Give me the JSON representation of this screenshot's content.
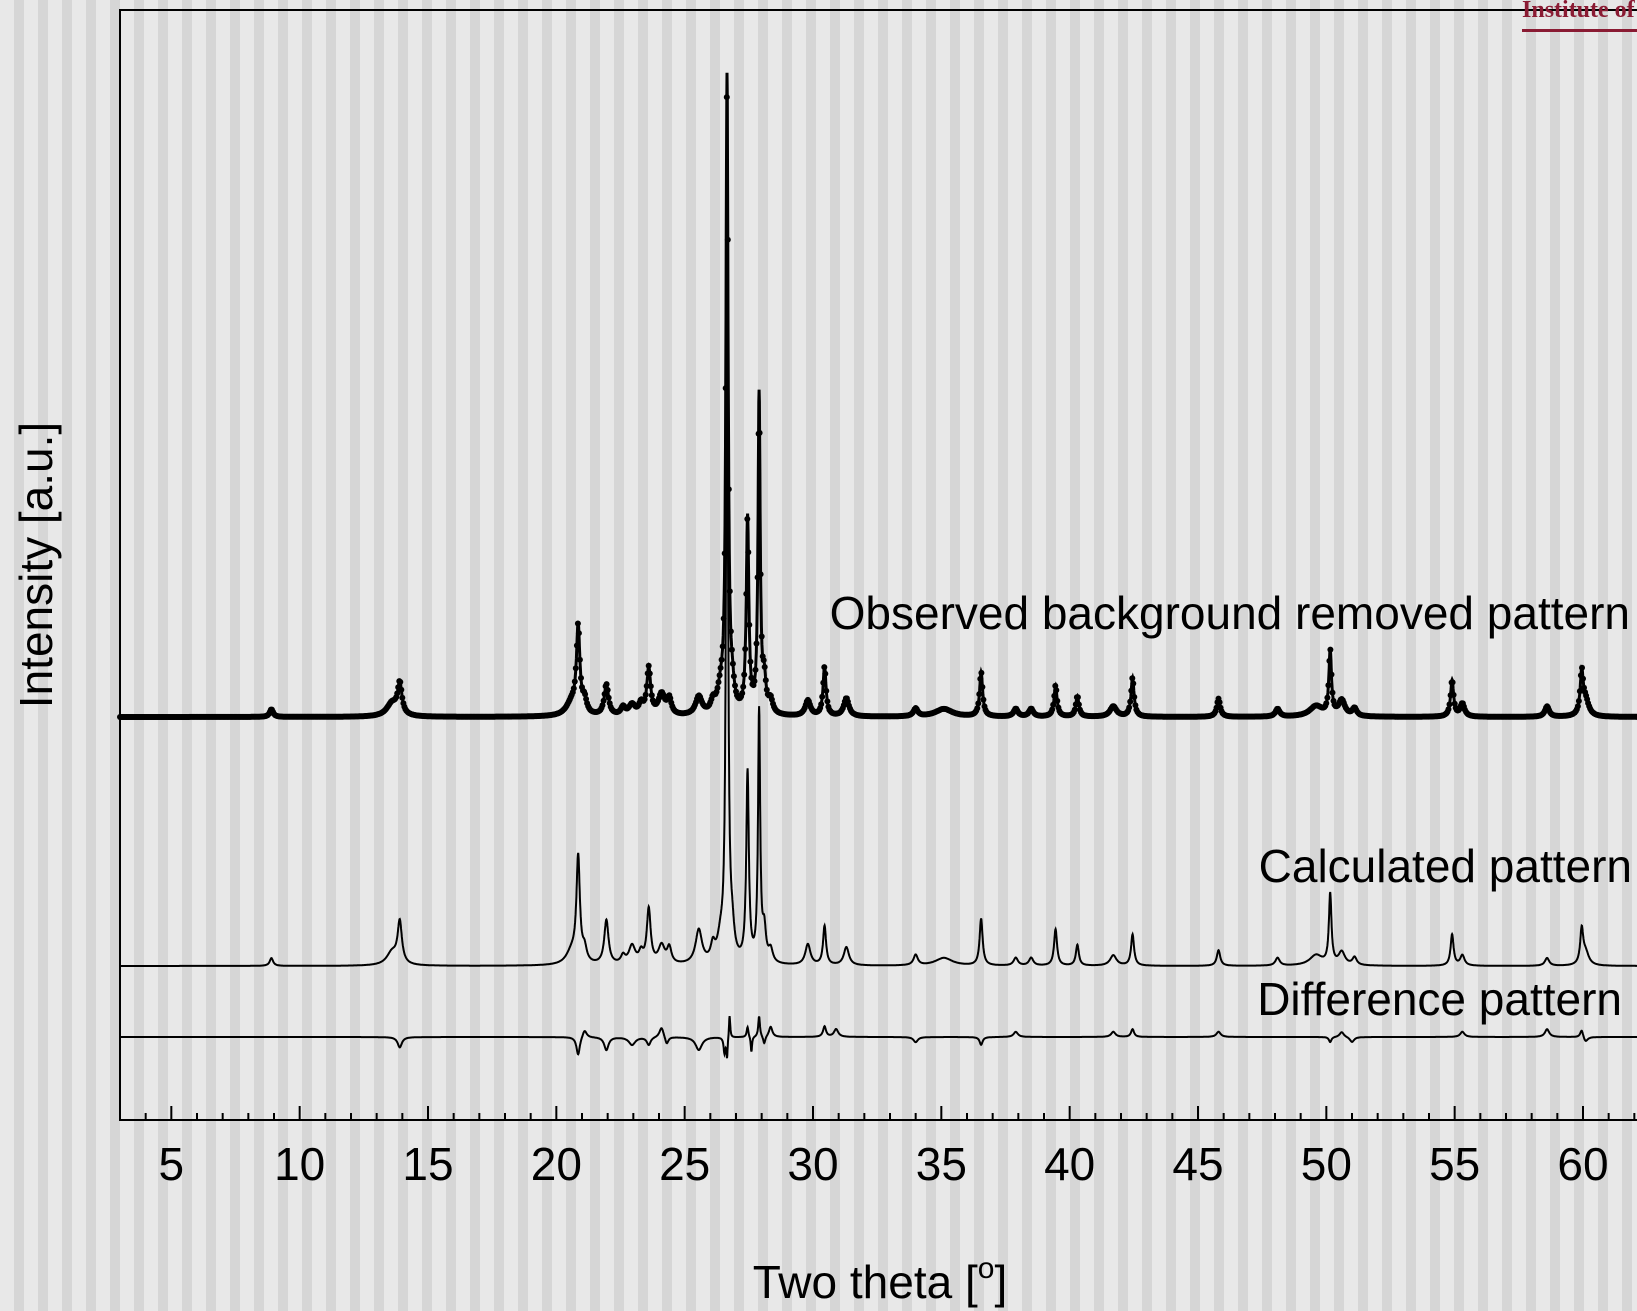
{
  "logo_text": "Institute of",
  "chart_data": {
    "type": "line",
    "title": "",
    "xlabel": "Two theta [",
    "xlabel_sup": "o",
    "xlabel_suffix": "]",
    "ylabel": "Intensity [a.u.]",
    "xlim": [
      3,
      63
    ],
    "x_ticks": [
      5,
      10,
      15,
      20,
      25,
      30,
      35,
      40,
      45,
      50,
      55,
      60
    ],
    "y_ticks": [],
    "grid": false,
    "x_range": [
      3,
      63
    ],
    "series": [
      {
        "name": "Observed background removed pattern",
        "marker": "dot",
        "baseline": 0,
        "peaks": [
          [
            8.9,
            3,
            0.08
          ],
          [
            13.6,
            5,
            0.25
          ],
          [
            13.9,
            12,
            0.1
          ],
          [
            20.6,
            5,
            0.25
          ],
          [
            20.85,
            33,
            0.08
          ],
          [
            21.1,
            5,
            0.1
          ],
          [
            21.95,
            12,
            0.1
          ],
          [
            22.6,
            3,
            0.1
          ],
          [
            22.95,
            4,
            0.15
          ],
          [
            23.3,
            4,
            0.1
          ],
          [
            23.6,
            18,
            0.09
          ],
          [
            24.1,
            8,
            0.15
          ],
          [
            24.4,
            6,
            0.1
          ],
          [
            25.55,
            7,
            0.15
          ],
          [
            26.1,
            4,
            0.1
          ],
          [
            26.4,
            8,
            0.15
          ],
          [
            26.65,
            243,
            0.05
          ],
          [
            26.85,
            8,
            0.1
          ],
          [
            27.45,
            75,
            0.06
          ],
          [
            27.9,
            122,
            0.05
          ],
          [
            28.1,
            12,
            0.08
          ],
          [
            28.35,
            5,
            0.1
          ],
          [
            29.8,
            6,
            0.12
          ],
          [
            30.45,
            19,
            0.07
          ],
          [
            31.3,
            7,
            0.12
          ],
          [
            34.0,
            3,
            0.1
          ],
          [
            35.1,
            3,
            0.4
          ],
          [
            36.55,
            17,
            0.07
          ],
          [
            37.9,
            3,
            0.1
          ],
          [
            38.5,
            3,
            0.1
          ],
          [
            39.45,
            12,
            0.07
          ],
          [
            40.3,
            8,
            0.07
          ],
          [
            41.7,
            4,
            0.15
          ],
          [
            42.45,
            15,
            0.07
          ],
          [
            45.8,
            7,
            0.08
          ],
          [
            48.1,
            3,
            0.1
          ],
          [
            49.6,
            4,
            0.3
          ],
          [
            50.15,
            25,
            0.06
          ],
          [
            50.6,
            6,
            0.15
          ],
          [
            51.1,
            3,
            0.1
          ],
          [
            54.9,
            14,
            0.07
          ],
          [
            55.3,
            5,
            0.1
          ],
          [
            58.6,
            4,
            0.1
          ],
          [
            59.95,
            16,
            0.07
          ],
          [
            60.1,
            6,
            0.15
          ]
        ]
      },
      {
        "name": "Calculated pattern",
        "marker": "none",
        "baseline": 0,
        "peaks": [
          [
            8.9,
            3,
            0.08
          ],
          [
            13.6,
            5,
            0.25
          ],
          [
            13.9,
            16,
            0.1
          ],
          [
            20.6,
            5,
            0.25
          ],
          [
            20.85,
            40,
            0.08
          ],
          [
            21.1,
            5,
            0.1
          ],
          [
            21.95,
            17,
            0.1
          ],
          [
            22.6,
            3,
            0.1
          ],
          [
            22.95,
            7,
            0.15
          ],
          [
            23.3,
            4,
            0.1
          ],
          [
            23.6,
            21,
            0.09
          ],
          [
            24.1,
            7,
            0.15
          ],
          [
            24.4,
            6,
            0.1
          ],
          [
            25.55,
            13,
            0.15
          ],
          [
            26.1,
            6,
            0.1
          ],
          [
            26.4,
            8,
            0.15
          ],
          [
            26.65,
            250,
            0.05
          ],
          [
            26.85,
            10,
            0.1
          ],
          [
            27.45,
            73,
            0.06
          ],
          [
            27.9,
            96,
            0.05
          ],
          [
            28.1,
            12,
            0.08
          ],
          [
            28.35,
            5,
            0.1
          ],
          [
            29.8,
            8,
            0.12
          ],
          [
            30.45,
            15,
            0.07
          ],
          [
            31.3,
            7,
            0.12
          ],
          [
            34.0,
            4,
            0.1
          ],
          [
            35.1,
            3,
            0.4
          ],
          [
            36.55,
            18,
            0.07
          ],
          [
            37.9,
            3,
            0.1
          ],
          [
            38.5,
            3,
            0.1
          ],
          [
            39.45,
            14,
            0.07
          ],
          [
            40.3,
            8,
            0.07
          ],
          [
            41.7,
            4,
            0.15
          ],
          [
            42.45,
            12,
            0.07
          ],
          [
            45.8,
            6,
            0.08
          ],
          [
            48.1,
            3,
            0.1
          ],
          [
            49.6,
            4,
            0.3
          ],
          [
            50.15,
            27,
            0.06
          ],
          [
            50.6,
            5,
            0.15
          ],
          [
            51.1,
            3,
            0.1
          ],
          [
            54.9,
            12,
            0.07
          ],
          [
            55.3,
            4,
            0.1
          ],
          [
            58.6,
            3,
            0.1
          ],
          [
            59.95,
            13,
            0.07
          ],
          [
            60.1,
            5,
            0.15
          ]
        ]
      },
      {
        "name": "Difference pattern",
        "marker": "none",
        "baseline": 0,
        "peaks": [
          [
            13.9,
            -4,
            0.1
          ],
          [
            20.85,
            -7,
            0.08
          ],
          [
            21.1,
            3,
            0.1
          ],
          [
            21.95,
            -5,
            0.1
          ],
          [
            22.95,
            -3,
            0.15
          ],
          [
            23.6,
            -3,
            0.09
          ],
          [
            24.1,
            4,
            0.1
          ],
          [
            24.3,
            -3,
            0.08
          ],
          [
            25.55,
            -5,
            0.15
          ],
          [
            26.55,
            -6,
            0.04
          ],
          [
            26.65,
            -8,
            0.03
          ],
          [
            26.75,
            9,
            0.03
          ],
          [
            27.45,
            4,
            0.04
          ],
          [
            27.6,
            -6,
            0.03
          ],
          [
            27.9,
            8,
            0.04
          ],
          [
            28.1,
            -3,
            0.05
          ],
          [
            28.35,
            4,
            0.08
          ],
          [
            30.45,
            4,
            0.07
          ],
          [
            30.9,
            3,
            0.1
          ],
          [
            34.0,
            -2,
            0.1
          ],
          [
            36.55,
            -3,
            0.07
          ],
          [
            37.9,
            2,
            0.1
          ],
          [
            41.7,
            2,
            0.1
          ],
          [
            42.45,
            3,
            0.07
          ],
          [
            45.8,
            2,
            0.1
          ],
          [
            50.15,
            -2,
            0.06
          ],
          [
            50.6,
            2,
            0.1
          ],
          [
            51.0,
            -2,
            0.1
          ],
          [
            55.3,
            2,
            0.1
          ],
          [
            58.6,
            3,
            0.1
          ],
          [
            59.95,
            3,
            0.07
          ],
          [
            60.1,
            -2,
            0.1
          ]
        ]
      }
    ]
  }
}
